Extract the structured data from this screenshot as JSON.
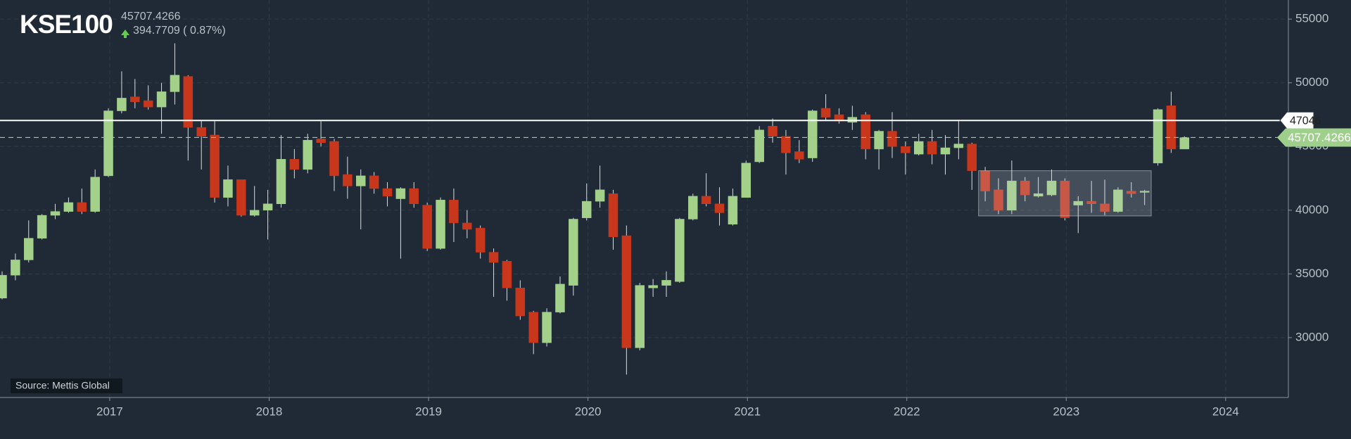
{
  "chart_data": {
    "type": "candlestick",
    "title": "KSE100",
    "last_price": 45707.4266,
    "change_label": "394.7709 ( 0.87%)",
    "source": "Source: Mettis Global",
    "x": [
      "2016-04",
      "2016-05",
      "2016-06",
      "2016-07",
      "2016-08",
      "2016-09",
      "2016-10",
      "2016-11",
      "2016-12",
      "2017-01",
      "2017-02",
      "2017-03",
      "2017-04",
      "2017-05",
      "2017-06",
      "2017-07",
      "2017-08",
      "2017-09",
      "2017-10",
      "2017-11",
      "2017-12",
      "2018-01",
      "2018-02",
      "2018-03",
      "2018-04",
      "2018-05",
      "2018-06",
      "2018-07",
      "2018-08",
      "2018-09",
      "2018-10",
      "2018-11",
      "2018-12",
      "2019-01",
      "2019-02",
      "2019-03",
      "2019-04",
      "2019-05",
      "2019-06",
      "2019-07",
      "2019-08",
      "2019-09",
      "2019-10",
      "2019-11",
      "2019-12",
      "2020-01",
      "2020-02",
      "2020-03",
      "2020-04",
      "2020-05",
      "2020-06",
      "2020-07",
      "2020-08",
      "2020-09",
      "2020-10",
      "2020-11",
      "2020-12",
      "2021-01",
      "2021-02",
      "2021-03",
      "2021-04",
      "2021-05",
      "2021-06",
      "2021-07",
      "2021-08",
      "2021-09",
      "2021-10",
      "2021-11",
      "2021-12",
      "2022-01",
      "2022-02",
      "2022-03",
      "2022-04",
      "2022-05",
      "2022-06",
      "2022-07",
      "2022-08",
      "2022-09",
      "2022-10",
      "2022-11",
      "2022-12",
      "2023-01",
      "2023-02",
      "2023-03",
      "2023-04",
      "2023-05",
      "2023-06",
      "2023-07",
      "2023-08",
      "2023-09"
    ],
    "open": [
      33100,
      34900,
      36100,
      37800,
      39600,
      39900,
      40600,
      39900,
      42700,
      47800,
      48900,
      48600,
      48100,
      49300,
      50500,
      46500,
      45900,
      41000,
      42400,
      39600,
      40000,
      40500,
      44000,
      43200,
      45600,
      45400,
      42800,
      41900,
      42700,
      41700,
      40900,
      41700,
      40400,
      37000,
      40800,
      39000,
      38600,
      36700,
      36000,
      33900,
      32000,
      29600,
      32000,
      34100,
      39400,
      40700,
      41300,
      38000,
      29200,
      33900,
      34100,
      34400,
      39300,
      41100,
      40500,
      38900,
      41000,
      43800,
      46600,
      45800,
      44600,
      44100,
      48000,
      47500,
      46900,
      47500,
      44800,
      46200,
      45000,
      44400,
      45400,
      44400,
      44900,
      45200,
      43100,
      41600,
      40000,
      42300,
      41100,
      41200,
      42300,
      40400,
      40700,
      40500,
      39900,
      41500,
      41400,
      43700,
      48200,
      44800
    ],
    "high": [
      35200,
      36600,
      39200,
      39700,
      40500,
      41000,
      41700,
      43200,
      48000,
      50900,
      50300,
      49800,
      50000,
      53100,
      50600,
      47000,
      47000,
      43500,
      42400,
      41900,
      41600,
      45900,
      44800,
      46000,
      47000,
      45600,
      44200,
      43200,
      43000,
      42200,
      41800,
      42200,
      40600,
      41000,
      41700,
      40000,
      38800,
      37000,
      36100,
      34500,
      32100,
      32300,
      34800,
      39400,
      42100,
      43500,
      41600,
      38800,
      34300,
      34600,
      35200,
      39400,
      41300,
      42900,
      41800,
      41700,
      43900,
      46600,
      47200,
      46300,
      45500,
      47900,
      49100,
      48000,
      48200,
      47700,
      46300,
      47700,
      45400,
      46000,
      46300,
      45900,
      47100,
      45300,
      43400,
      42500,
      43900,
      42600,
      42600,
      43200,
      42500,
      41100,
      42300,
      42400,
      41800,
      42200,
      41600,
      48000,
      49300,
      45800
    ],
    "low": [
      33000,
      34500,
      35900,
      37700,
      39300,
      39800,
      39700,
      39800,
      42600,
      47600,
      48000,
      47900,
      46000,
      48300,
      43900,
      43200,
      40600,
      40300,
      39500,
      39500,
      37700,
      40200,
      42500,
      42900,
      45000,
      41500,
      40900,
      38500,
      41300,
      40300,
      36200,
      40200,
      36800,
      36900,
      37500,
      37800,
      36200,
      33200,
      32900,
      31400,
      28700,
      29300,
      31900,
      33300,
      39200,
      40200,
      36900,
      27100,
      29000,
      33200,
      33200,
      34300,
      39200,
      40300,
      38800,
      38800,
      41000,
      43700,
      45300,
      42800,
      43700,
      43800,
      47000,
      46800,
      46300,
      44000,
      43200,
      44100,
      42800,
      44300,
      43600,
      42800,
      44000,
      41600,
      40700,
      39700,
      39700,
      40700,
      41000,
      41100,
      39200,
      38200,
      39800,
      39600,
      39800,
      41000,
      40400,
      43500,
      44500,
      44800
    ],
    "close": [
      34900,
      36100,
      37800,
      39600,
      39900,
      40600,
      39900,
      42600,
      47800,
      48800,
      48500,
      48100,
      49300,
      50600,
      46500,
      45800,
      41000,
      42400,
      39600,
      40000,
      40500,
      44000,
      43200,
      45500,
      45300,
      42700,
      41900,
      42700,
      41700,
      41100,
      41700,
      40500,
      37000,
      40800,
      39000,
      38500,
      36700,
      35900,
      33900,
      31700,
      29600,
      32000,
      34200,
      39300,
      40700,
      41600,
      37900,
      29200,
      34100,
      34100,
      34500,
      39300,
      41100,
      40500,
      39800,
      41100,
      43700,
      46300,
      45800,
      44500,
      44000,
      47800,
      47300,
      47000,
      47300,
      44800,
      46200,
      45000,
      44500,
      45400,
      44400,
      44900,
      45200,
      43100,
      41500,
      40000,
      42300,
      41200,
      41300,
      42300,
      39400,
      40700,
      40500,
      39900,
      41600,
      41300,
      41500,
      47900,
      44800,
      45700
    ],
    "up_color": "#a3d18a",
    "down_color": "#c8361b",
    "ylim": [
      25300,
      56500
    ],
    "yticks": [
      30000,
      35000,
      40000,
      45000,
      50000,
      55000
    ],
    "xticks": [
      2017,
      2018,
      2019,
      2020,
      2021,
      2022,
      2023,
      2024
    ],
    "grid": true,
    "hline": {
      "value": 47046,
      "color": "#ffffff"
    },
    "last_line_color": "#9fd08b",
    "box": {
      "x": [
        "2022-06",
        "2023-06"
      ],
      "y": [
        39550,
        43100
      ]
    }
  }
}
